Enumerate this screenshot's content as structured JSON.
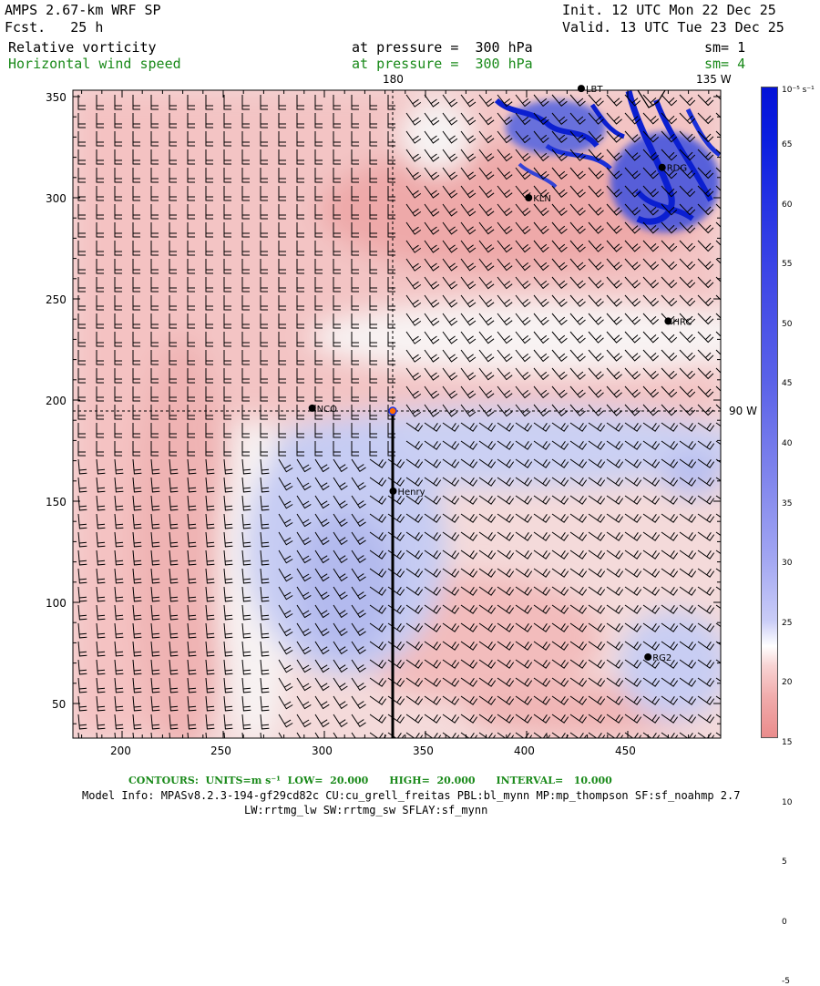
{
  "header": {
    "model": "AMPS 2.67-km WRF SP",
    "fcst": "Fcst.   25 h",
    "init": "Init. 12 UTC Mon 22 Dec 25",
    "valid": "Valid. 13 UTC Tue 23 Dec 25",
    "field1": {
      "name": "Relative vorticity",
      "level": "at pressure =  300 hPa",
      "sm": "sm= 1"
    },
    "field2": {
      "name": "Horizontal wind speed",
      "level": "at pressure =  300 hPa",
      "sm": "sm= 4"
    }
  },
  "map": {
    "lon_labels": {
      "top1": "180",
      "top2": "135 W",
      "right": "90 W"
    },
    "x_ticks": [
      "200",
      "250",
      "300",
      "350",
      "400",
      "450"
    ],
    "y_ticks": [
      "350",
      "300",
      "250",
      "200",
      "150",
      "100",
      "50"
    ],
    "stations": [
      {
        "name": "NCO",
        "x": 294,
        "y": 196
      },
      {
        "name": "Henry",
        "x": 334,
        "y": 155
      },
      {
        "name": "KLN",
        "x": 401,
        "y": 300
      },
      {
        "name": "RDG",
        "x": 467,
        "y": 315
      },
      {
        "name": "HRC",
        "x": 470,
        "y": 239
      },
      {
        "name": "RG2",
        "x": 460,
        "y": 73
      },
      {
        "name": "LBT",
        "x": 427,
        "y": 354
      }
    ]
  },
  "colorbar": {
    "unit": "10⁻⁵ s⁻¹",
    "labels": [
      "65",
      "60",
      "55",
      "50",
      "45",
      "40",
      "35",
      "30",
      "25",
      "20",
      "15",
      "10",
      "5",
      "0",
      "-5"
    ]
  },
  "footer": {
    "contours": "CONTOURS:  UNITS=m s⁻¹  LOW=  20.000      HIGH=  20.000      INTERVAL=   10.000",
    "model_info": "Model Info: MPASv8.2.3-194-gf29cd82c CU:cu_grell_freitas PBL:bl_mynn MP:mp_thompson SF:sf_noahmp 2.7",
    "physics": "LW:rrtmg_lw SW:rrtmg_sw SFLAY:sf_mynn"
  },
  "colors": {
    "positive": "#e88080",
    "negative": "#6a74e0",
    "strong": "#0b1fd0",
    "label_green": "#1a8a1a"
  }
}
